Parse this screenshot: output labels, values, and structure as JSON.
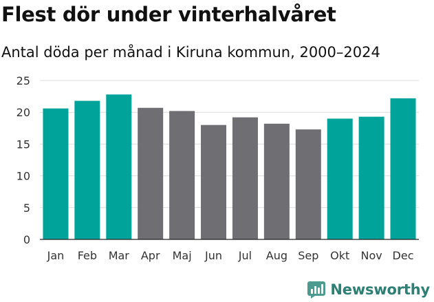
{
  "header": {
    "title": "Flest dör under vinterhalvåret",
    "subtitle": "Antal döda per månad i Kiruna kommun, 2000–2024"
  },
  "chart_data": {
    "type": "bar",
    "title": "Flest dör under vinterhalvåret",
    "subtitle": "Antal döda per månad i Kiruna kommun, 2000–2024",
    "xlabel": "",
    "ylabel": "",
    "categories": [
      "Jan",
      "Feb",
      "Mar",
      "Apr",
      "Maj",
      "Jun",
      "Jul",
      "Aug",
      "Sep",
      "Okt",
      "Nov",
      "Dec"
    ],
    "values": [
      20.6,
      21.8,
      22.8,
      20.7,
      20.2,
      18.0,
      19.2,
      18.2,
      17.3,
      19.0,
      19.3,
      22.2
    ],
    "highlight": [
      true,
      true,
      true,
      false,
      false,
      false,
      false,
      false,
      false,
      true,
      true,
      true
    ],
    "ylim": [
      0,
      25
    ],
    "yticks": [
      0,
      5,
      10,
      15,
      20,
      25
    ],
    "grid": true,
    "colors": {
      "highlight": "#00a39a",
      "normal": "#6f6e73"
    }
  },
  "footer": {
    "brand": "Newsworthy",
    "brand_color": "#2e7f74"
  }
}
